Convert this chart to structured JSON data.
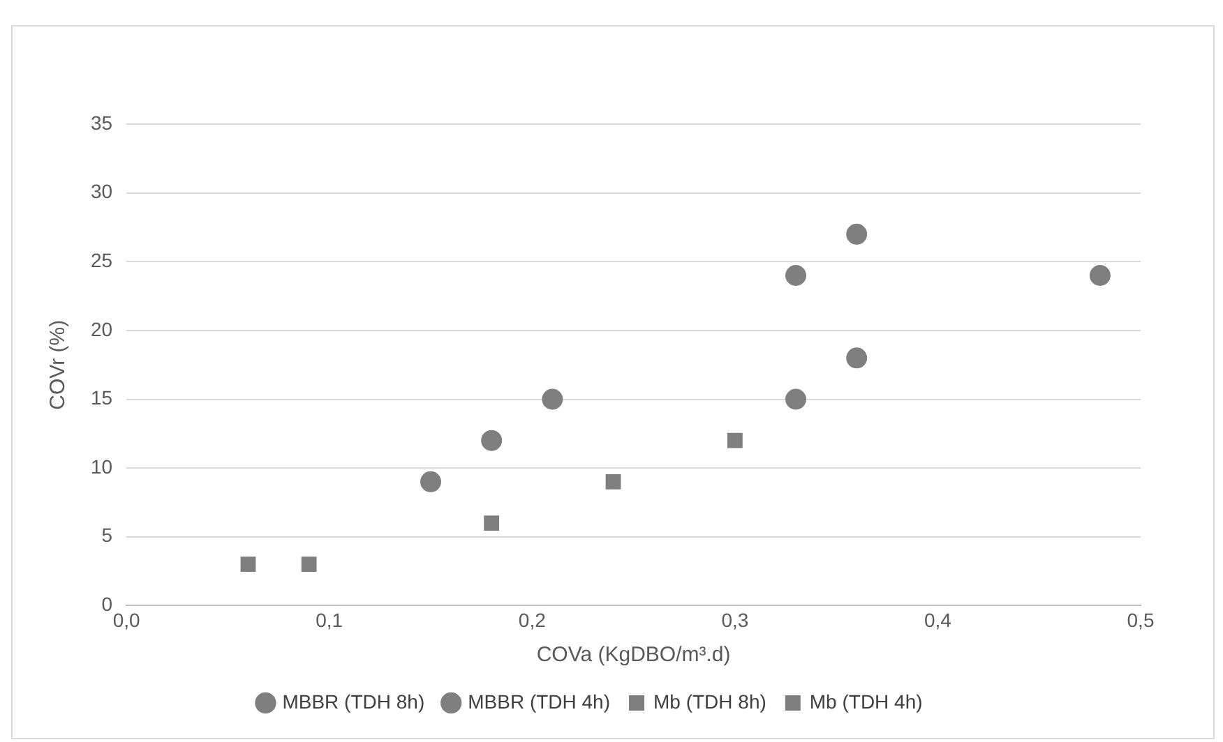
{
  "chart_data": {
    "type": "scatter",
    "xlabel": "COVa (KgDBO/m³.d)",
    "ylabel": "COVr (%)",
    "xlim": [
      0,
      0.5
    ],
    "xticks": [
      {
        "value": 0,
        "label": "0,0"
      },
      {
        "value": 0.1,
        "label": "0,1"
      },
      {
        "value": 0.2,
        "label": "0,2"
      },
      {
        "value": 0.3,
        "label": "0,3"
      },
      {
        "value": 0.4,
        "label": "0,4"
      },
      {
        "value": 0.5,
        "label": "0,5"
      }
    ],
    "ylim": [
      0,
      35
    ],
    "yticks": [
      0,
      5,
      10,
      15,
      20,
      25,
      30,
      35
    ],
    "grid": "y",
    "legend": "bottom",
    "series": [
      {
        "name": "MBBR (TDH 8h)",
        "color": "#7f7f7f",
        "marker": "circle",
        "x": [
          0.15,
          0.18,
          0.21,
          0.33,
          0.33
        ],
        "values": [
          9,
          12,
          15,
          24,
          15
        ]
      },
      {
        "name": "MBBR (TDH 4h)",
        "color": "#7f7f7f",
        "marker": "circle",
        "x": [
          0.36,
          0.36,
          0.48
        ],
        "values": [
          27,
          18,
          24
        ]
      },
      {
        "name": "Mb (TDH 8h)",
        "color": "#7f7f7f",
        "marker": "square",
        "x": [
          0.06,
          0.09
        ],
        "values": [
          3,
          3
        ]
      },
      {
        "name": "Mb (TDH 4h)",
        "color": "#7f7f7f",
        "marker": "square",
        "x": [
          0.18,
          0.24,
          0.3
        ],
        "values": [
          6,
          9,
          12
        ]
      }
    ]
  }
}
